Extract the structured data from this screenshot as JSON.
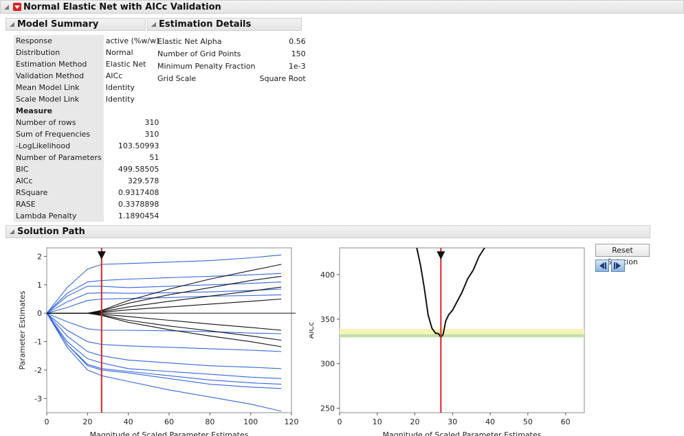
{
  "report": {
    "title": "Normal Elastic Net with AICc Validation"
  },
  "model_summary": {
    "title": "Model Summary",
    "rows": [
      {
        "label": "Response",
        "value": "active (%w/w)"
      },
      {
        "label": "Distribution",
        "value": "Normal"
      },
      {
        "label": "Estimation Method",
        "value": "Elastic Net"
      },
      {
        "label": "Validation Method",
        "value": "AICc"
      },
      {
        "label": "Mean Model Link",
        "value": "Identity"
      },
      {
        "label": "Scale Model Link",
        "value": "Identity"
      }
    ],
    "measure_header": "Measure",
    "measures": [
      {
        "label": "Number of rows",
        "value": "310"
      },
      {
        "label": "Sum of Frequencies",
        "value": "310"
      },
      {
        "label": "-LogLikelihood",
        "value": "103.50993"
      },
      {
        "label": "Number of Parameters",
        "value": "51"
      },
      {
        "label": "BIC",
        "value": "499.58505"
      },
      {
        "label": "AICc",
        "value": "329.578"
      },
      {
        "label": "RSquare",
        "value": "0.9317408"
      },
      {
        "label": "RASE",
        "value": "0.3378898"
      },
      {
        "label": "Lambda Penalty",
        "value": "1.1890454"
      }
    ]
  },
  "estimation_details": {
    "title": "Estimation Details",
    "rows": [
      {
        "label": "Elastic Net Alpha",
        "value": "0.56"
      },
      {
        "label": "Number of Grid Points",
        "value": "150"
      },
      {
        "label": "Minimum Penalty Fraction",
        "value": "1e-3"
      },
      {
        "label": "Grid Scale",
        "value": "Square Root"
      }
    ]
  },
  "solution_path": {
    "title": "Solution Path",
    "reset_button": "Reset Solution",
    "step_back_icon": "step-back-icon",
    "step_forward_icon": "step-forward-icon"
  },
  "colors": {
    "blue": "#3366dd",
    "black": "#111111",
    "red": "#dd2222",
    "yellow_band": "#f6f3b8",
    "green_band": "#bfe0a8"
  },
  "chart_data": [
    {
      "type": "line",
      "xlabel": "Magnitude of Scaled Parameter Estimates",
      "ylabel": "Parameter Estimates",
      "xlim": [
        0,
        120
      ],
      "ylim": [
        -3.5,
        2.3
      ],
      "xticks": [
        "0",
        "20",
        "40",
        "60",
        "80",
        "100",
        "120"
      ],
      "yticks": [
        "2",
        "1",
        "0",
        "-1",
        "-2",
        "-3"
      ],
      "current_solution_x": 26.9,
      "series": [
        {
          "group": "blue",
          "x": [
            0,
            10,
            20,
            27,
            40,
            60,
            80,
            100,
            115
          ],
          "y": [
            0,
            0.9,
            1.55,
            1.72,
            1.75,
            1.8,
            1.85,
            1.95,
            2.05
          ]
        },
        {
          "group": "blue",
          "x": [
            0,
            10,
            20,
            27,
            40,
            60,
            80,
            100,
            115
          ],
          "y": [
            0,
            0.6,
            0.95,
            0.95,
            0.9,
            0.95,
            1.0,
            1.05,
            1.1
          ]
        },
        {
          "group": "blue",
          "x": [
            0,
            10,
            20,
            27,
            40,
            60,
            80,
            100,
            115
          ],
          "y": [
            0,
            0.4,
            0.7,
            0.72,
            0.7,
            0.72,
            0.75,
            0.8,
            0.85
          ]
        },
        {
          "group": "blue",
          "x": [
            0,
            10,
            20,
            27,
            40,
            60,
            80,
            100,
            115
          ],
          "y": [
            0,
            0.2,
            0.45,
            0.5,
            0.52,
            0.55,
            0.6,
            0.62,
            0.65
          ]
        },
        {
          "group": "blue",
          "x": [
            0,
            10,
            20,
            27,
            40,
            60,
            80,
            100,
            115
          ],
          "y": [
            0,
            -0.3,
            -0.55,
            -0.6,
            -0.6,
            -0.62,
            -0.65,
            -0.7,
            -0.72
          ]
        },
        {
          "group": "blue",
          "x": [
            0,
            10,
            20,
            27,
            40,
            60,
            80,
            100,
            115
          ],
          "y": [
            0,
            -0.6,
            -1.0,
            -1.1,
            -1.15,
            -1.2,
            -1.25,
            -1.3,
            -1.35
          ]
        },
        {
          "group": "blue",
          "x": [
            0,
            10,
            20,
            27,
            40,
            60,
            80,
            100,
            115
          ],
          "y": [
            0,
            -0.8,
            -1.35,
            -1.5,
            -1.65,
            -1.75,
            -1.85,
            -1.9,
            -1.95
          ]
        },
        {
          "group": "blue",
          "x": [
            0,
            10,
            20,
            27,
            40,
            60,
            80,
            100,
            115
          ],
          "y": [
            0,
            -1.0,
            -1.6,
            -1.75,
            -1.95,
            -2.05,
            -2.15,
            -2.25,
            -2.3
          ]
        },
        {
          "group": "blue",
          "x": [
            0,
            10,
            20,
            27,
            40,
            60,
            80,
            100,
            115
          ],
          "y": [
            0,
            -1.1,
            -1.8,
            -1.95,
            -2.05,
            -2.2,
            -2.35,
            -2.45,
            -2.5
          ]
        },
        {
          "group": "blue",
          "x": [
            0,
            10,
            20,
            27,
            40,
            60,
            80,
            100,
            115
          ],
          "y": [
            0,
            -1.1,
            -1.85,
            -2.0,
            -2.1,
            -2.3,
            -2.5,
            -2.6,
            -2.65
          ]
        },
        {
          "group": "blue",
          "x": [
            0,
            10,
            20,
            27,
            40,
            60,
            80,
            100,
            115
          ],
          "y": [
            0,
            -1.2,
            -2.0,
            -2.2,
            -2.4,
            -2.7,
            -2.95,
            -3.2,
            -3.45
          ]
        },
        {
          "group": "blue",
          "x": [
            0,
            10,
            20,
            27,
            40,
            60,
            80,
            100,
            115
          ],
          "y": [
            0,
            0.7,
            1.1,
            1.15,
            1.2,
            1.25,
            1.3,
            1.35,
            1.4
          ]
        },
        {
          "group": "black",
          "x": [
            0,
            20,
            27,
            40,
            60,
            80,
            100,
            115
          ],
          "y": [
            0,
            0,
            0.1,
            0.45,
            0.85,
            1.2,
            1.5,
            1.72
          ]
        },
        {
          "group": "black",
          "x": [
            0,
            20,
            27,
            40,
            60,
            80,
            100,
            115
          ],
          "y": [
            0,
            0,
            0.08,
            0.35,
            0.65,
            0.9,
            1.15,
            1.3
          ]
        },
        {
          "group": "black",
          "x": [
            0,
            20,
            27,
            40,
            60,
            80,
            100,
            115
          ],
          "y": [
            0,
            0,
            0.05,
            0.22,
            0.42,
            0.6,
            0.78,
            0.92
          ]
        },
        {
          "group": "black",
          "x": [
            0,
            20,
            27,
            40,
            60,
            80,
            100,
            115
          ],
          "y": [
            0,
            0,
            0.03,
            0.12,
            0.22,
            0.32,
            0.42,
            0.5
          ]
        },
        {
          "group": "black",
          "x": [
            0,
            20,
            27,
            40,
            60,
            80,
            100,
            115
          ],
          "y": [
            0,
            0,
            -0.03,
            -0.12,
            -0.25,
            -0.38,
            -0.5,
            -0.6
          ]
        },
        {
          "group": "black",
          "x": [
            0,
            20,
            27,
            40,
            60,
            80,
            100,
            115
          ],
          "y": [
            0,
            0,
            -0.06,
            -0.25,
            -0.45,
            -0.62,
            -0.8,
            -0.95
          ]
        },
        {
          "group": "black",
          "x": [
            0,
            20,
            27,
            40,
            60,
            80,
            100,
            115
          ],
          "y": [
            0,
            0,
            -0.08,
            -0.32,
            -0.58,
            -0.8,
            -1.0,
            -1.18
          ]
        }
      ]
    },
    {
      "type": "line",
      "xlabel": "Magnitude of Scaled Parameter Estimates",
      "ylabel": "AICc",
      "xlim": [
        0,
        65
      ],
      "ylim": [
        245,
        430
      ],
      "xticks": [
        "0",
        "10",
        "20",
        "30",
        "40",
        "50",
        "60"
      ],
      "yticks": [
        "400",
        "350",
        "300",
        "250"
      ],
      "current_solution_x": 26.9,
      "bands": [
        {
          "from": 333,
          "to": 339,
          "color": "yellow"
        },
        {
          "from": 329.6,
          "to": 333,
          "color": "green"
        }
      ],
      "series": [
        {
          "group": "black",
          "x": [
            20.0,
            21.5,
            22.5,
            23.5,
            24.5,
            25.5,
            26.2,
            26.9,
            27.5,
            28.2,
            29.0,
            30.0,
            31.0,
            32.5,
            34.0,
            35.5,
            37.0,
            38.5
          ],
          "y": [
            440,
            410,
            385,
            355,
            340,
            334,
            334,
            329.6,
            333,
            348,
            355,
            360,
            368,
            380,
            395,
            405,
            420,
            430
          ]
        }
      ]
    }
  ]
}
